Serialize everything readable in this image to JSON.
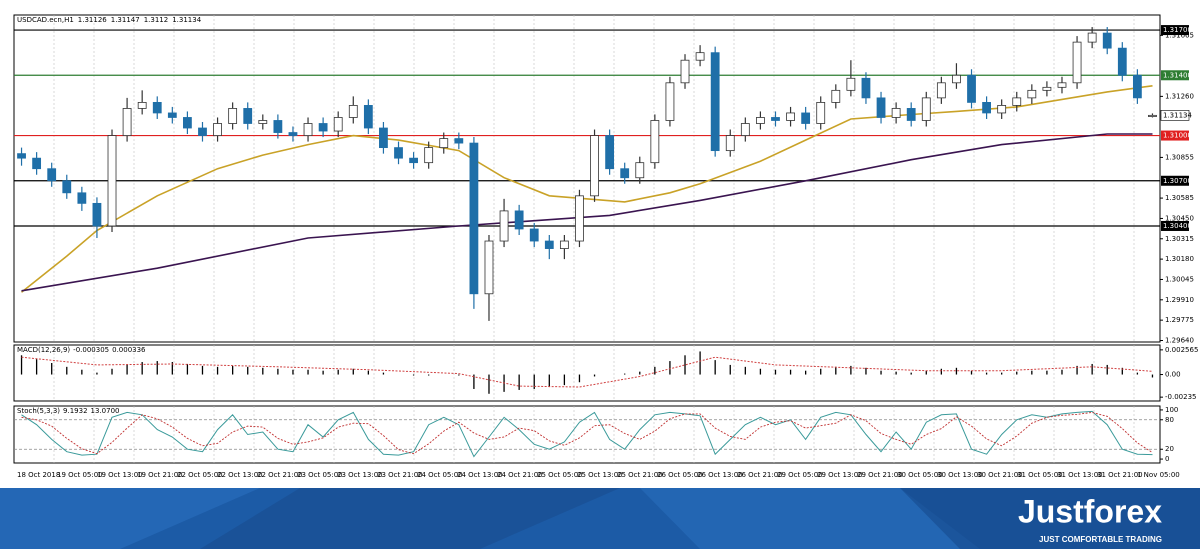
{
  "chart_data": {
    "type": "candlestick",
    "title": "USDCAD.ecn,H1",
    "open": [
      1.3088,
      1.3085,
      1.3078,
      1.307,
      1.3062,
      1.3055,
      1.304,
      1.31,
      1.3118,
      1.3122,
      1.3115,
      1.3112,
      1.3105,
      1.31,
      1.3108,
      1.3118,
      1.3108,
      1.311,
      1.3102,
      1.31,
      1.3108,
      1.3103,
      1.3112,
      1.312,
      1.3105,
      1.3092,
      1.3085,
      1.3082,
      1.3092,
      1.3098,
      1.3095,
      1.2995,
      1.303,
      1.305,
      1.3038,
      1.303,
      1.3025,
      1.303,
      1.306,
      1.31,
      1.3078,
      1.3072,
      1.3082,
      1.311,
      1.3135,
      1.315,
      1.3155,
      1.309,
      1.31,
      1.3108,
      1.3112,
      1.311,
      1.3115,
      1.3108,
      1.3122,
      1.313,
      1.3138,
      1.3125,
      1.3112,
      1.3118,
      1.311,
      1.3125,
      1.3135,
      1.314,
      1.3122,
      1.3115,
      1.312,
      1.3125,
      1.313,
      1.3132,
      1.3135,
      1.3162,
      1.3168,
      1.3158,
      1.314,
      1.31126
    ],
    "high": [
      1.3092,
      1.3089,
      1.3082,
      1.3074,
      1.3066,
      1.3059,
      1.3104,
      1.3125,
      1.313,
      1.3126,
      1.3119,
      1.3116,
      1.3109,
      1.3112,
      1.3122,
      1.3122,
      1.3114,
      1.3114,
      1.3106,
      1.3112,
      1.3112,
      1.3116,
      1.3126,
      1.3124,
      1.3109,
      1.3096,
      1.3089,
      1.3096,
      1.3102,
      1.3102,
      1.3099,
      1.3034,
      1.3058,
      1.3054,
      1.3042,
      1.3034,
      1.3034,
      1.3064,
      1.3104,
      1.3104,
      1.3082,
      1.3086,
      1.3114,
      1.3139,
      1.3154,
      1.316,
      1.3159,
      1.3104,
      1.3112,
      1.3116,
      1.3116,
      1.3119,
      1.3119,
      1.3126,
      1.3134,
      1.315,
      1.3142,
      1.3129,
      1.3122,
      1.3122,
      1.3129,
      1.3139,
      1.3148,
      1.3144,
      1.3126,
      1.3124,
      1.3129,
      1.3134,
      1.3136,
      1.3139,
      1.3166,
      1.3172,
      1.3172,
      1.3162,
      1.3144,
      1.31147
    ],
    "low": [
      1.308,
      1.3074,
      1.3066,
      1.3058,
      1.305,
      1.3032,
      1.3036,
      1.3096,
      1.3114,
      1.3111,
      1.3108,
      1.3101,
      1.3096,
      1.3096,
      1.3104,
      1.3104,
      1.3104,
      1.3098,
      1.3096,
      1.3096,
      1.3099,
      1.3099,
      1.3108,
      1.3101,
      1.3088,
      1.3081,
      1.3078,
      1.3078,
      1.3088,
      1.3091,
      1.2985,
      1.2977,
      1.3026,
      1.3034,
      1.3026,
      1.3018,
      1.3018,
      1.3026,
      1.3056,
      1.3074,
      1.3068,
      1.3068,
      1.3078,
      1.3106,
      1.3131,
      1.3146,
      1.3086,
      1.3086,
      1.3096,
      1.3104,
      1.3106,
      1.3106,
      1.3104,
      1.3104,
      1.3118,
      1.3126,
      1.3121,
      1.3108,
      1.3108,
      1.3106,
      1.3106,
      1.3121,
      1.3131,
      1.3118,
      1.3111,
      1.3111,
      1.3116,
      1.3121,
      1.3126,
      1.3128,
      1.3131,
      1.3158,
      1.3154,
      1.3136,
      1.3121,
      1.3112
    ],
    "close": [
      1.3085,
      1.3078,
      1.307,
      1.3062,
      1.3055,
      1.304,
      1.31,
      1.3118,
      1.3122,
      1.3115,
      1.3112,
      1.3105,
      1.31,
      1.3108,
      1.3118,
      1.3108,
      1.311,
      1.3102,
      1.31,
      1.3108,
      1.3103,
      1.3112,
      1.312,
      1.3105,
      1.3092,
      1.3085,
      1.3082,
      1.3092,
      1.3098,
      1.3095,
      1.2995,
      1.303,
      1.305,
      1.3038,
      1.303,
      1.3025,
      1.303,
      1.306,
      1.31,
      1.3078,
      1.3072,
      1.3082,
      1.311,
      1.3135,
      1.315,
      1.3155,
      1.309,
      1.31,
      1.3108,
      1.3112,
      1.311,
      1.3115,
      1.3108,
      1.3122,
      1.313,
      1.3138,
      1.3125,
      1.3112,
      1.3118,
      1.311,
      1.3125,
      1.3135,
      1.314,
      1.3122,
      1.3115,
      1.312,
      1.3125,
      1.313,
      1.3132,
      1.3135,
      1.3162,
      1.3168,
      1.3158,
      1.314,
      1.3125,
      1.31134
    ],
    "up_color": "#ffffff",
    "down_color": "#1f6fa8",
    "ylim": [
      1.2963,
      1.318
    ],
    "yticks": [
      1.31665,
      {
        "value": 1.3126,
        "label": "1.31260"
      },
      1.30855,
      1.30585,
      {
        "value": 1.3045,
        "label": "1.30450"
      },
      1.30315,
      {
        "value": 1.3018,
        "label": "1.30180"
      },
      1.30045,
      {
        "value": 1.2991,
        "label": "1.29910"
      },
      1.29775,
      {
        "value": 1.2964,
        "label": "1.29640"
      }
    ],
    "levels": [
      {
        "value": 1.317,
        "label": "1.31700",
        "color": "#000000"
      },
      {
        "value": 1.314,
        "label": "1.31400",
        "color": "#2e7d32"
      },
      {
        "value": 1.31,
        "label": "1.31000",
        "color": "#e02020"
      },
      {
        "value": 1.307,
        "label": "1.30700",
        "color": "#000000"
      },
      {
        "value": 1.304,
        "label": "1.30400",
        "color": "#000000"
      }
    ],
    "moving_averages": [
      {
        "color": "#c9a227",
        "x": [
          0,
          3,
          5,
          9,
          13,
          16,
          19,
          22,
          25,
          29,
          32,
          35,
          40,
          43,
          45,
          49,
          52,
          55,
          59,
          62,
          66,
          69,
          72,
          75
        ],
        "values": [
          1.2996,
          1.302,
          1.3037,
          1.306,
          1.3078,
          1.3087,
          1.3094,
          1.31,
          1.3097,
          1.309,
          1.3072,
          1.306,
          1.3056,
          1.3062,
          1.3068,
          1.3083,
          1.3097,
          1.3111,
          1.3114,
          1.3116,
          1.3119,
          1.3124,
          1.3129,
          1.3133
        ]
      },
      {
        "color": "#3a1450",
        "x": [
          0,
          9,
          19,
          29,
          39,
          45,
          52,
          59,
          65,
          72,
          75
        ],
        "values": [
          1.2997,
          1.3012,
          1.3032,
          1.304,
          1.3047,
          1.3057,
          1.307,
          1.3084,
          1.3094,
          1.3101,
          1.3101
        ]
      }
    ],
    "x_labels": [
      "18 Oct 2018",
      "19 Oct 05:00",
      "19 Oct 13:00",
      "19 Oct 21:00",
      "22 Oct 05:00",
      "22 Oct 13:00",
      "22 Oct 21:00",
      "23 Oct 05:00",
      "23 Oct 13:00",
      "23 Oct 21:00",
      "24 Oct 05:00",
      "24 Oct 13:00",
      "24 Oct 21:00",
      "25 Oct 05:00",
      "25 Oct 13:00",
      "25 Oct 21:00",
      "26 Oct 05:00",
      "26 Oct 13:00",
      "26 Oct 21:00",
      "29 Oct 05:00",
      "29 Oct 13:00",
      "29 Oct 21:00",
      "30 Oct 05:00",
      "30 Oct 13:00",
      "30 Oct 21:00",
      "31 Oct 05:00",
      "31 Oct 13:00",
      "31 Oct 21:00",
      "1 Nov 05:00"
    ],
    "macd": {
      "title": "MACD(12,26,9)",
      "histogram": [
        0.002,
        0.0016,
        0.0012,
        0.0008,
        0.0005,
        0.0002,
        0.0006,
        0.001,
        0.0013,
        0.0014,
        0.0013,
        0.0011,
        0.0009,
        0.0008,
        0.0009,
        0.0008,
        0.0007,
        0.0006,
        0.0005,
        0.0005,
        0.0004,
        0.0005,
        0.0006,
        0.0004,
        0.0002,
        0.0,
        -0.0001,
        -0.0001,
        0.0,
        -0.0001,
        -0.0015,
        -0.002,
        -0.0018,
        -0.0016,
        -0.0015,
        -0.0013,
        -0.0011,
        -0.0008,
        -0.0002,
        0.0,
        0.0001,
        0.0003,
        0.0008,
        0.0014,
        0.002,
        0.0024,
        0.0015,
        0.001,
        0.0008,
        0.0006,
        0.0005,
        0.0005,
        0.0004,
        0.0006,
        0.0008,
        0.0009,
        0.0007,
        0.0004,
        0.0003,
        0.0002,
        0.0004,
        0.0006,
        0.0007,
        0.0004,
        0.0002,
        0.0002,
        0.0003,
        0.0004,
        0.0004,
        0.0005,
        0.0009,
        0.0011,
        0.001,
        0.0007,
        0.0002,
        -0.000305
      ],
      "signal_x": [
        0,
        5,
        10,
        17,
        23,
        29,
        33,
        37,
        41,
        46,
        50,
        55,
        60,
        65,
        71,
        75
      ],
      "signal": [
        0.0018,
        0.001,
        0.0011,
        0.0008,
        0.0005,
        0.0001,
        -0.0012,
        -0.0013,
        -0.0002,
        0.0018,
        0.001,
        0.0007,
        0.0004,
        0.0004,
        0.0008,
        0.000336
      ],
      "hist_color": "#000000",
      "signal_color": "#d04040",
      "ylim": [
        -0.00275,
        0.00307
      ],
      "yticks": [
        0.002565,
        {
          "value": 0,
          "label": "0.00"
        },
        -0.00235
      ]
    },
    "stochastic": {
      "title": "Stoch(5,3,3)",
      "main": [
        90,
        70,
        40,
        15,
        8,
        10,
        85,
        95,
        90,
        60,
        45,
        20,
        15,
        60,
        90,
        50,
        55,
        20,
        15,
        70,
        45,
        80,
        95,
        40,
        10,
        8,
        15,
        70,
        85,
        70,
        5,
        45,
        85,
        60,
        30,
        20,
        35,
        75,
        95,
        40,
        20,
        60,
        90,
        95,
        92,
        88,
        10,
        40,
        70,
        85,
        70,
        80,
        40,
        85,
        95,
        90,
        50,
        15,
        55,
        20,
        75,
        90,
        92,
        20,
        10,
        50,
        80,
        90,
        85,
        92,
        95,
        97,
        70,
        20,
        10,
        9.1932
      ],
      "signal": [
        85,
        80,
        67,
        42,
        21,
        11,
        34,
        63,
        90,
        82,
        65,
        42,
        27,
        32,
        55,
        67,
        65,
        42,
        30,
        35,
        43,
        65,
        73,
        72,
        48,
        19,
        11,
        31,
        57,
        75,
        53,
        40,
        45,
        63,
        58,
        37,
        28,
        43,
        68,
        70,
        52,
        40,
        57,
        82,
        92,
        92,
        63,
        46,
        40,
        65,
        75,
        78,
        63,
        68,
        73,
        90,
        78,
        52,
        40,
        30,
        50,
        62,
        86,
        67,
        41,
        27,
        47,
        73,
        85,
        89,
        91,
        95,
        87,
        62,
        33,
        13.07
      ],
      "signal_last_label": "13.0700",
      "main_color": "#3a9a9a",
      "signal_color": "#c03030",
      "ylim": [
        -8,
        108
      ],
      "yticks": [
        100,
        80,
        20,
        0
      ],
      "levels": [
        80,
        20
      ]
    }
  },
  "branding": {
    "logo": "Justforex",
    "tagline": "JUST COMFORTABLE TRADING"
  }
}
